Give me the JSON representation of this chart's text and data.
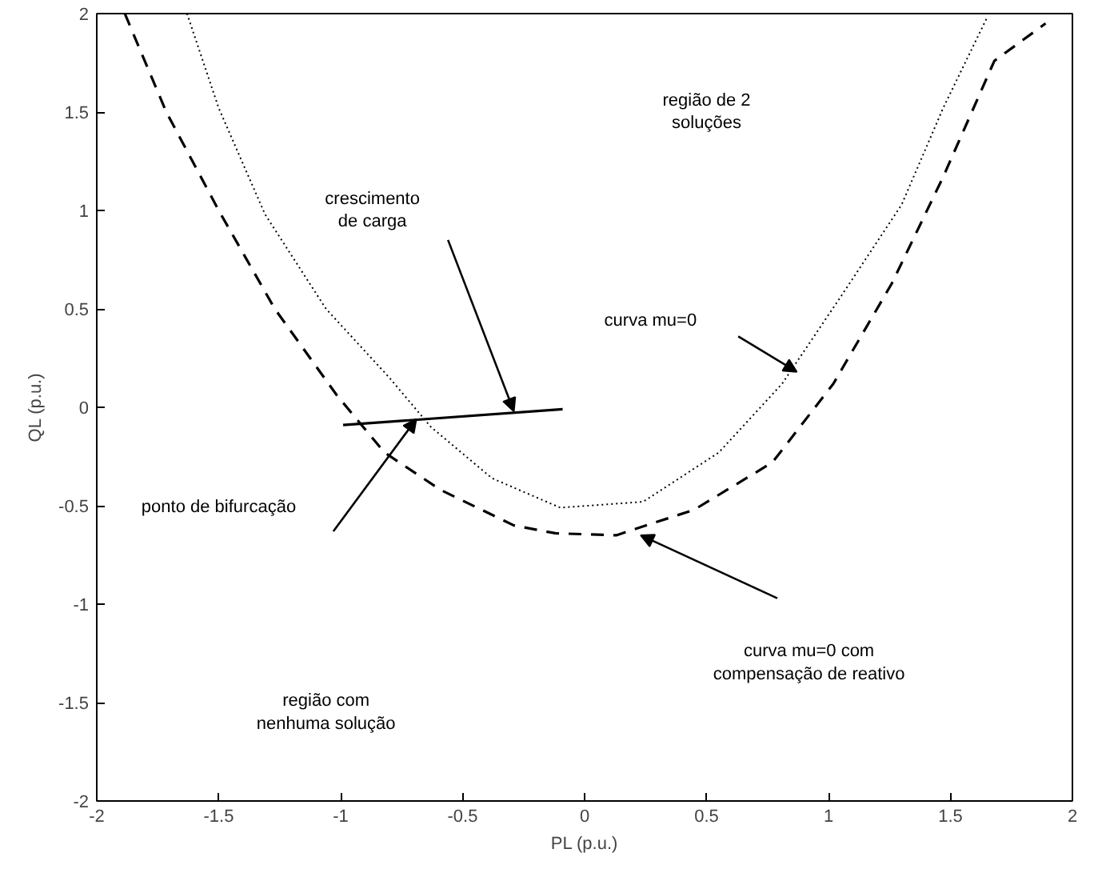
{
  "chart_data": {
    "type": "line",
    "xlabel": "PL (p.u.)",
    "ylabel": "QL (p.u.)",
    "xlim": [
      -2,
      2
    ],
    "ylim": [
      -2,
      2
    ],
    "xticks": [
      -2,
      -1.5,
      -1,
      -0.5,
      0,
      0.5,
      1,
      1.5,
      2
    ],
    "yticks": [
      -2,
      -1.5,
      -1,
      -0.5,
      0,
      0.5,
      1,
      1.5,
      2
    ],
    "grid": false,
    "marker": "none",
    "series": [
      {
        "color": "#000000",
        "line_style": "dotted",
        "x": [
          -1.63,
          -1.5,
          -1.31,
          -1.06,
          -0.8,
          -0.63,
          -0.38,
          -0.1,
          0.24,
          0.55,
          0.81,
          1.06,
          1.3,
          1.47,
          1.65
        ],
        "values": [
          2,
          1.52,
          0.98,
          0.5,
          0.15,
          -0.1,
          -0.36,
          -0.51,
          -0.48,
          -0.23,
          0.12,
          0.58,
          1.03,
          1.52,
          1.98
        ]
      },
      {
        "color": "#000000",
        "line_style": "dashed",
        "x": [
          -1.885,
          -1.715,
          -1.5,
          -1.27,
          -1.015,
          -0.82,
          -0.59,
          -0.29,
          -0.12,
          0.13,
          0.45,
          0.77,
          1.02,
          1.26,
          1.47,
          1.68,
          1.89
        ],
        "values": [
          2,
          1.5,
          1.0,
          0.5,
          0.06,
          -0.23,
          -0.42,
          -0.6,
          -0.64,
          -0.65,
          -0.52,
          -0.28,
          0.12,
          0.63,
          1.17,
          1.76,
          1.95
        ]
      },
      {
        "color": "#000000",
        "line_style": "solid",
        "x": [
          -0.99,
          -0.09
        ],
        "values": [
          -0.09,
          -0.01
        ]
      }
    ],
    "annotations": [
      "crescimento\nde carga",
      "ponto de bifurcação",
      "curva mu=0",
      "curva mu=0 com\ncompensação de reativo",
      "região de 2\nsoluções",
      "região com\nnenhuma solução"
    ]
  }
}
